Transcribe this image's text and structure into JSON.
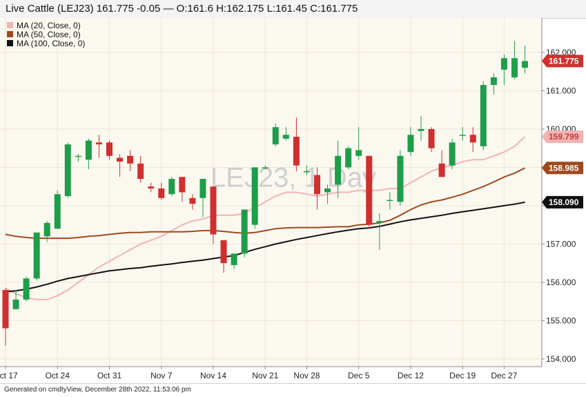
{
  "header": {
    "title": "Live Cattle (LEJ23) 161.775 -0.05 — O:161.6 H:162.175 L:161.45 C:161.775"
  },
  "footer": {
    "text": "Generated on cmdtyView, December 28th 2022, 11:53:06 pm"
  },
  "chart_data": {
    "type": "candlestick",
    "symbol": "LEJ23",
    "watermark": "LEJ23, 1 Day",
    "background_color": "#fbf8f0",
    "up_color": "#1e9e4a",
    "down_color": "#d12f2f",
    "ylim": [
      153.8,
      162.9
    ],
    "y_ticks": [
      "154.000",
      "155.000",
      "156.000",
      "157.000",
      "158.000",
      "159.000",
      "160.000",
      "161.000",
      "162.000"
    ],
    "x_tick_labels": [
      {
        "index": 0,
        "label": "Oct 17"
      },
      {
        "index": 5,
        "label": "Oct 24"
      },
      {
        "index": 10,
        "label": "Oct 31"
      },
      {
        "index": 15,
        "label": "Nov 7"
      },
      {
        "index": 20,
        "label": "Nov 14"
      },
      {
        "index": 25,
        "label": "Nov 21"
      },
      {
        "index": 29,
        "label": "Nov 28"
      },
      {
        "index": 34,
        "label": "Dec 5"
      },
      {
        "index": 39,
        "label": "Dec 12"
      },
      {
        "index": 44,
        "label": "Dec 19"
      },
      {
        "index": 48,
        "label": "Dec 27"
      }
    ],
    "candles": [
      {
        "o": 155.8,
        "h": 155.85,
        "l": 154.35,
        "c": 154.8
      },
      {
        "o": 155.3,
        "h": 155.8,
        "l": 155.3,
        "c": 155.55
      },
      {
        "o": 155.55,
        "h": 156.15,
        "l": 155.5,
        "c": 156.1
      },
      {
        "o": 156.1,
        "h": 157.3,
        "l": 156.05,
        "c": 157.3
      },
      {
        "o": 157.2,
        "h": 157.6,
        "l": 157.05,
        "c": 157.55
      },
      {
        "o": 157.4,
        "h": 158.4,
        "l": 157.4,
        "c": 158.3
      },
      {
        "o": 158.25,
        "h": 159.65,
        "l": 158.2,
        "c": 159.6
      },
      {
        "o": 159.3,
        "h": 159.35,
        "l": 159.15,
        "c": 159.3
      },
      {
        "o": 159.2,
        "h": 159.75,
        "l": 158.95,
        "c": 159.7
      },
      {
        "o": 159.65,
        "h": 159.85,
        "l": 159.25,
        "c": 159.6
      },
      {
        "o": 159.65,
        "h": 159.7,
        "l": 159.2,
        "c": 159.3
      },
      {
        "o": 159.25,
        "h": 159.35,
        "l": 158.75,
        "c": 159.15
      },
      {
        "o": 159.3,
        "h": 159.45,
        "l": 158.9,
        "c": 159.1
      },
      {
        "o": 159.1,
        "h": 159.3,
        "l": 158.6,
        "c": 158.7
      },
      {
        "o": 158.5,
        "h": 158.6,
        "l": 158.35,
        "c": 158.45
      },
      {
        "o": 158.45,
        "h": 158.6,
        "l": 158.15,
        "c": 158.2
      },
      {
        "o": 158.3,
        "h": 158.75,
        "l": 158.25,
        "c": 158.7
      },
      {
        "o": 158.75,
        "h": 158.75,
        "l": 158.1,
        "c": 158.35
      },
      {
        "o": 158.2,
        "h": 158.3,
        "l": 157.9,
        "c": 158.05
      },
      {
        "o": 158.2,
        "h": 158.7,
        "l": 157.7,
        "c": 158.7
      },
      {
        "o": 158.5,
        "h": 158.5,
        "l": 157.0,
        "c": 157.25
      },
      {
        "o": 157.1,
        "h": 157.1,
        "l": 156.25,
        "c": 156.5
      },
      {
        "o": 156.45,
        "h": 156.75,
        "l": 156.35,
        "c": 156.75
      },
      {
        "o": 156.75,
        "h": 157.9,
        "l": 156.65,
        "c": 157.9
      },
      {
        "o": 157.5,
        "h": 159.0,
        "l": 157.4,
        "c": 159.0
      },
      {
        "o": 159.0,
        "h": 159.05,
        "l": 158.95,
        "c": 159.0
      },
      {
        "o": 159.6,
        "h": 160.15,
        "l": 159.55,
        "c": 160.05
      },
      {
        "o": 159.75,
        "h": 160.05,
        "l": 159.7,
        "c": 159.85
      },
      {
        "o": 159.8,
        "h": 160.3,
        "l": 158.9,
        "c": 159.05
      },
      {
        "o": 158.9,
        "h": 159.05,
        "l": 158.8,
        "c": 158.9
      },
      {
        "o": 158.8,
        "h": 159.0,
        "l": 157.9,
        "c": 158.3
      },
      {
        "o": 158.35,
        "h": 158.55,
        "l": 158.05,
        "c": 158.45
      },
      {
        "o": 158.55,
        "h": 159.7,
        "l": 158.2,
        "c": 159.3
      },
      {
        "o": 159.0,
        "h": 159.55,
        "l": 158.95,
        "c": 159.5
      },
      {
        "o": 159.3,
        "h": 160.05,
        "l": 159.2,
        "c": 159.45
      },
      {
        "o": 159.3,
        "h": 159.3,
        "l": 157.4,
        "c": 157.5
      },
      {
        "o": 157.55,
        "h": 157.8,
        "l": 156.85,
        "c": 157.6
      },
      {
        "o": 158.15,
        "h": 158.35,
        "l": 157.9,
        "c": 158.15
      },
      {
        "o": 158.1,
        "h": 159.45,
        "l": 158.0,
        "c": 159.3
      },
      {
        "o": 159.4,
        "h": 160.05,
        "l": 159.3,
        "c": 159.85
      },
      {
        "o": 159.95,
        "h": 160.35,
        "l": 159.7,
        "c": 160.0
      },
      {
        "o": 160.0,
        "h": 160.05,
        "l": 159.4,
        "c": 159.5
      },
      {
        "o": 159.1,
        "h": 159.45,
        "l": 158.75,
        "c": 158.75
      },
      {
        "o": 159.05,
        "h": 159.75,
        "l": 158.95,
        "c": 159.65
      },
      {
        "o": 159.85,
        "h": 160.05,
        "l": 159.7,
        "c": 159.85
      },
      {
        "o": 159.85,
        "h": 160.05,
        "l": 159.4,
        "c": 159.65
      },
      {
        "o": 159.55,
        "h": 161.25,
        "l": 159.45,
        "c": 161.15
      },
      {
        "o": 161.15,
        "h": 161.45,
        "l": 160.9,
        "c": 161.35
      },
      {
        "o": 161.55,
        "h": 161.95,
        "l": 161.15,
        "c": 161.85
      },
      {
        "o": 161.35,
        "h": 162.3,
        "l": 161.3,
        "c": 161.85
      },
      {
        "o": 161.6,
        "h": 162.175,
        "l": 161.45,
        "c": 161.775
      }
    ],
    "series": [
      {
        "name": "MA (20, Close, 0)",
        "color": "#f2b3b3",
        "last_label": "159.799",
        "values": [
          155.85,
          155.7,
          155.6,
          155.55,
          155.55,
          155.65,
          155.8,
          156.0,
          156.2,
          156.4,
          156.55,
          156.7,
          156.85,
          157.0,
          157.1,
          157.2,
          157.35,
          157.5,
          157.6,
          157.65,
          157.75,
          157.75,
          157.75,
          157.8,
          157.95,
          158.1,
          158.25,
          158.35,
          158.35,
          158.3,
          158.25,
          158.3,
          158.35,
          158.35,
          158.4,
          158.4,
          158.4,
          158.45,
          158.45,
          158.6,
          158.75,
          158.9,
          159.0,
          159.05,
          159.15,
          159.2,
          159.2,
          159.3,
          159.4,
          159.55,
          159.799
        ],
        "start_index": 0
      },
      {
        "name": "MA (50, Close, 0)",
        "color": "#9e4a1e",
        "last_label": "158.985",
        "values": [
          157.25,
          157.2,
          157.17,
          157.15,
          157.15,
          157.15,
          157.15,
          157.17,
          157.2,
          157.22,
          157.25,
          157.28,
          157.3,
          157.3,
          157.32,
          157.32,
          157.32,
          157.32,
          157.33,
          157.35,
          157.35,
          157.33,
          157.3,
          157.28,
          157.3,
          157.35,
          157.4,
          157.42,
          157.43,
          157.43,
          157.43,
          157.44,
          157.45,
          157.45,
          157.5,
          157.52,
          157.55,
          157.62,
          157.75,
          157.9,
          158.02,
          158.1,
          158.15,
          158.22,
          158.3,
          158.4,
          158.5,
          158.62,
          158.75,
          158.85,
          158.985
        ],
        "start_index": 0
      },
      {
        "name": "MA (100, Close, 0)",
        "color": "#111111",
        "last_label": "158.090",
        "values": [
          155.75,
          155.78,
          155.82,
          155.88,
          155.95,
          156.03,
          156.1,
          156.15,
          156.2,
          156.25,
          156.3,
          156.33,
          156.36,
          156.38,
          156.42,
          156.45,
          156.48,
          156.52,
          156.55,
          156.58,
          156.62,
          156.66,
          156.7,
          156.78,
          156.86,
          156.93,
          157.0,
          157.06,
          157.12,
          157.17,
          157.22,
          157.27,
          157.32,
          157.36,
          157.4,
          157.42,
          157.46,
          157.52,
          157.58,
          157.63,
          157.67,
          157.71,
          157.75,
          157.8,
          157.84,
          157.88,
          157.92,
          157.96,
          158.0,
          158.04,
          158.09
        ],
        "start_index": 0
      }
    ],
    "last_price_label": "161.775"
  }
}
